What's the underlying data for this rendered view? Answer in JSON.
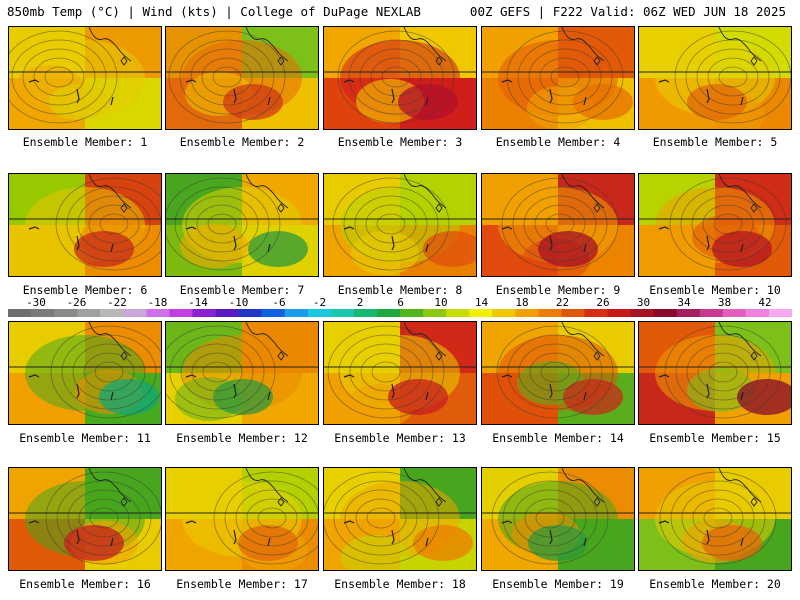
{
  "header": {
    "title_left": "850mb Temp (°C) | Wind (kts) | College of DuPage NEXLAB",
    "title_right": "00Z GEFS | F222 Valid: 06Z WED JUN 18 2025"
  },
  "panels": [
    {
      "label": "Ensemble Member: 1",
      "colors": [
        "#e8cc00",
        "#f0a800",
        "#d9d600",
        "#ec9a00"
      ],
      "highlight": "#e0c800"
    },
    {
      "label": "Ensemble Member: 2",
      "colors": [
        "#e79200",
        "#e26a0a",
        "#f0c000",
        "#7ec01a"
      ],
      "highlight": "#d23a14"
    },
    {
      "label": "Ensemble Member: 3",
      "colors": [
        "#f2a600",
        "#e0420e",
        "#d01e1a",
        "#f0c800"
      ],
      "highlight": "#b4102a"
    },
    {
      "label": "Ensemble Member: 4",
      "colors": [
        "#f2a000",
        "#ec8000",
        "#f0c000",
        "#e25a08"
      ],
      "highlight": "#e87000"
    },
    {
      "label": "Ensemble Member: 5",
      "colors": [
        "#e8d000",
        "#f09a00",
        "#ec8800",
        "#d2dc00"
      ],
      "highlight": "#e06808"
    },
    {
      "label": "Ensemble Member: 6",
      "colors": [
        "#98c800",
        "#e8c400",
        "#ee8c00",
        "#d8420e"
      ],
      "highlight": "#c8281a"
    },
    {
      "label": "Ensemble Member: 7",
      "colors": [
        "#4aa61e",
        "#7cba10",
        "#e0d200",
        "#f0a800"
      ],
      "highlight": "#2e9a3a"
    },
    {
      "label": "Ensemble Member: 8",
      "colors": [
        "#e8cc00",
        "#f0a400",
        "#ea8000",
        "#b4d200"
      ],
      "highlight": "#e0500c"
    },
    {
      "label": "Ensemble Member: 9",
      "colors": [
        "#f0a000",
        "#e04a0c",
        "#ec8400",
        "#c8281a"
      ],
      "highlight": "#a81024"
    },
    {
      "label": "Ensemble Member: 10",
      "colors": [
        "#b8d400",
        "#f09c00",
        "#e25a08",
        "#d02c16"
      ],
      "highlight": "#b41422"
    },
    {
      "label": "Ensemble Member: 11",
      "colors": [
        "#e8cc00",
        "#f0a000",
        "#48aa1e",
        "#ec8c00"
      ],
      "highlight": "#10a878"
    },
    {
      "label": "Ensemble Member: 12",
      "colors": [
        "#6cb61a",
        "#e6d000",
        "#f0a800",
        "#ea8800"
      ],
      "highlight": "#2e9a3a"
    },
    {
      "label": "Ensemble Member: 13",
      "colors": [
        "#e8d000",
        "#f0a000",
        "#e05c0a",
        "#d22818"
      ],
      "highlight": "#c81e1e"
    },
    {
      "label": "Ensemble Member: 14",
      "colors": [
        "#f0a400",
        "#e05008",
        "#5aae1c",
        "#e8cc00"
      ],
      "highlight": "#c82a18"
    },
    {
      "label": "Ensemble Member: 15",
      "colors": [
        "#e25a08",
        "#c8281a",
        "#f0a000",
        "#7ec01a"
      ],
      "highlight": "#8a0a2c"
    },
    {
      "label": "Ensemble Member: 16",
      "colors": [
        "#f0a400",
        "#e05a08",
        "#e8cc00",
        "#48a61e"
      ],
      "highlight": "#c81e1e"
    },
    {
      "label": "Ensemble Member: 17",
      "colors": [
        "#e8d000",
        "#f0a400",
        "#ec8c00",
        "#b4d000"
      ],
      "highlight": "#e06808"
    },
    {
      "label": "Ensemble Member: 18",
      "colors": [
        "#e8d000",
        "#f0a400",
        "#c8d400",
        "#48a61e"
      ],
      "highlight": "#ec7c00"
    },
    {
      "label": "Ensemble Member: 19",
      "colors": [
        "#e4d000",
        "#f0a800",
        "#48a61e",
        "#ec8c00"
      ],
      "highlight": "#2e9a3a"
    },
    {
      "label": "Ensemble Member: 20",
      "colors": [
        "#f0a000",
        "#7ec01a",
        "#48a61e",
        "#e8cc00"
      ],
      "highlight": "#e06808"
    }
  ],
  "colorbar": {
    "ticks": [
      "-30",
      "-26",
      "-22",
      "-18",
      "-14",
      "-10",
      "-6",
      "-2",
      "2",
      "6",
      "10",
      "14",
      "18",
      "22",
      "26",
      "30",
      "34",
      "38",
      "42"
    ],
    "colors": [
      "#6e6e6e",
      "#7a7a7a",
      "#8a8a8a",
      "#a0a0a0",
      "#b8b8b8",
      "#c8a8d8",
      "#d070e8",
      "#c040e0",
      "#8a20d0",
      "#5a18c0",
      "#2038c8",
      "#1060e0",
      "#1c9ce8",
      "#18c8e0",
      "#18c8b0",
      "#14b870",
      "#20a840",
      "#54b41c",
      "#8cc810",
      "#c8dc00",
      "#f0f000",
      "#f0c800",
      "#f0a000",
      "#ec7c00",
      "#e25408",
      "#d82c14",
      "#c81818",
      "#a81024",
      "#8a0a2c",
      "#a02060",
      "#c83a90",
      "#e060c0",
      "#f080e0",
      "#f8a8f0"
    ]
  }
}
